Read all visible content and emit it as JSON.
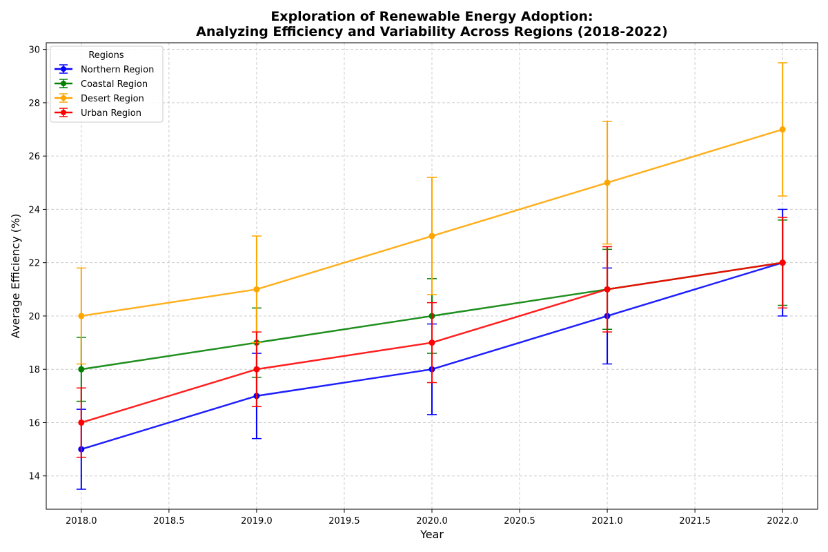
{
  "chart_data": {
    "type": "line",
    "title": "Exploration of Renewable Energy Adoption:",
    "subtitle": "Analyzing Efficiency and Variability Across Regions (2018-2022)",
    "xlabel": "Year",
    "ylabel": "Average Efficiency (%)",
    "x": [
      2018,
      2019,
      2020,
      2021,
      2022
    ],
    "xlim": [
      2017.8,
      2022.2
    ],
    "ylim": [
      12.75,
      30.25
    ],
    "x_ticks": [
      "2018.0",
      "2018.5",
      "2019.0",
      "2019.5",
      "2020.0",
      "2020.5",
      "2021.0",
      "2021.5",
      "2022.0"
    ],
    "y_ticks": [
      "14",
      "16",
      "18",
      "20",
      "22",
      "24",
      "26",
      "28",
      "30"
    ],
    "grid": true,
    "legend_title": "Regions",
    "legend_position": "top-left",
    "series": [
      {
        "name": "Northern Region",
        "color": "#0000ff",
        "values": [
          15,
          17,
          18,
          20,
          22
        ],
        "errors": [
          1.5,
          1.6,
          1.7,
          1.8,
          2.0
        ]
      },
      {
        "name": "Coastal Region",
        "color": "#008000",
        "values": [
          18,
          19,
          20,
          21,
          22
        ],
        "errors": [
          1.2,
          1.3,
          1.4,
          1.5,
          1.6
        ]
      },
      {
        "name": "Desert Region",
        "color": "#ffa500",
        "values": [
          20,
          21,
          23,
          25,
          27
        ],
        "errors": [
          1.8,
          2.0,
          2.2,
          2.3,
          2.5
        ]
      },
      {
        "name": "Urban Region",
        "color": "#ff0000",
        "values": [
          16,
          18,
          19,
          21,
          22
        ],
        "errors": [
          1.3,
          1.4,
          1.5,
          1.6,
          1.7
        ]
      }
    ]
  }
}
